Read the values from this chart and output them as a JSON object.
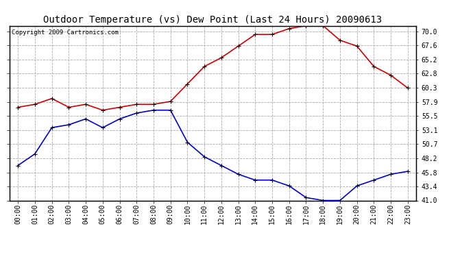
{
  "title": "Outdoor Temperature (vs) Dew Point (Last 24 Hours) 20090613",
  "copyright": "Copyright 2009 Cartronics.com",
  "hours": [
    "00:00",
    "01:00",
    "02:00",
    "03:00",
    "04:00",
    "05:00",
    "06:00",
    "07:00",
    "08:00",
    "09:00",
    "10:00",
    "11:00",
    "12:00",
    "13:00",
    "14:00",
    "15:00",
    "16:00",
    "17:00",
    "18:00",
    "19:00",
    "20:00",
    "21:00",
    "22:00",
    "23:00"
  ],
  "temp": [
    57.0,
    57.5,
    58.5,
    57.0,
    57.5,
    56.5,
    57.0,
    57.5,
    57.5,
    58.0,
    61.0,
    64.0,
    65.5,
    67.5,
    69.5,
    69.5,
    70.5,
    71.0,
    71.0,
    68.5,
    67.5,
    64.0,
    62.5,
    60.3
  ],
  "dew": [
    47.0,
    49.0,
    53.5,
    54.0,
    55.0,
    53.5,
    55.0,
    56.0,
    56.5,
    56.5,
    51.0,
    48.5,
    47.0,
    45.5,
    44.5,
    44.5,
    43.5,
    41.5,
    41.0,
    41.0,
    43.5,
    44.5,
    45.5,
    46.0
  ],
  "temp_color": "#cc0000",
  "dew_color": "#0000cc",
  "marker": "+",
  "markersize": 5,
  "linewidth": 1.2,
  "ylim": [
    41.0,
    71.0
  ],
  "yticks": [
    41.0,
    43.4,
    45.8,
    48.2,
    50.7,
    53.1,
    55.5,
    57.9,
    60.3,
    62.8,
    65.2,
    67.6,
    70.0
  ],
  "background_color": "#ffffff",
  "grid_color": "#aaaaaa",
  "title_fontsize": 10,
  "tick_fontsize": 7,
  "copyright_fontsize": 6.5
}
